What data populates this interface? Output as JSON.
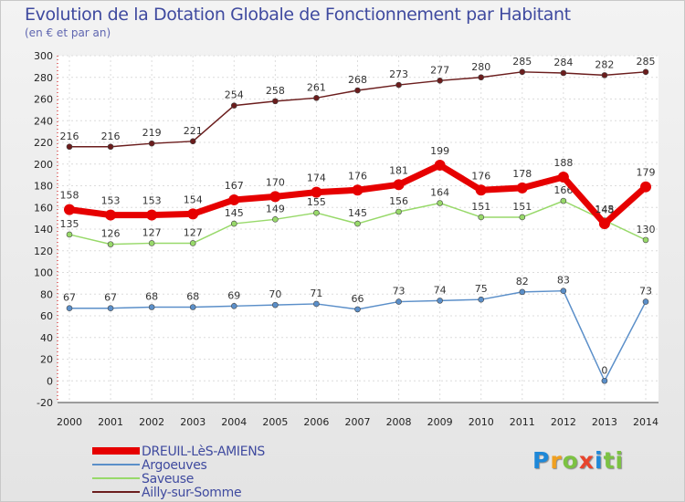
{
  "header": {
    "title": "Evolution de la Dotation Globale de Fonctionnement par Habitant",
    "subtitle": "(en € et par an)"
  },
  "logo": {
    "text": "Proxiti",
    "chars": [
      "P",
      "r",
      "o",
      "x",
      "i",
      "ti"
    ]
  },
  "colors": {
    "DREUIL-LèS-AMIENS": "#e60000",
    "Argoeuves": "#5b8fc9",
    "Saveuse": "#98d96a",
    "Ailly-sur-Somme": "#6b1d1d"
  },
  "chart_data": {
    "type": "line",
    "title": "Evolution de la Dotation Globale de Fonctionnement par Habitant",
    "subtitle": "(en € et par an)",
    "xlabel": "",
    "ylabel": "",
    "x": [
      2000,
      2001,
      2002,
      2003,
      2004,
      2005,
      2006,
      2007,
      2008,
      2009,
      2010,
      2011,
      2012,
      2013,
      2014
    ],
    "ylim": [
      -20,
      300
    ],
    "yticks": [
      -20,
      0,
      20,
      40,
      60,
      80,
      100,
      120,
      140,
      160,
      180,
      200,
      220,
      240,
      260,
      280,
      300
    ],
    "grid": true,
    "legend_position": "bottom-left",
    "series": [
      {
        "name": "Ailly-sur-Somme",
        "values": [
          216,
          216,
          219,
          221,
          254,
          258,
          261,
          268,
          273,
          277,
          280,
          285,
          284,
          282,
          285
        ]
      },
      {
        "name": "Argoeuves",
        "values": [
          67,
          67,
          68,
          68,
          69,
          70,
          71,
          66,
          73,
          74,
          75,
          82,
          83,
          0,
          73
        ]
      },
      {
        "name": "Saveuse",
        "values": [
          135,
          126,
          127,
          127,
          145,
          149,
          155,
          145,
          156,
          164,
          151,
          151,
          166,
          148,
          130
        ]
      },
      {
        "name": "DREUIL-LèS-AMIENS",
        "values": [
          158,
          153,
          153,
          154,
          167,
          170,
          174,
          176,
          181,
          199,
          176,
          178,
          188,
          145,
          179
        ]
      }
    ],
    "legend": [
      "DREUIL-LèS-AMIENS",
      "Argoeuves",
      "Saveuse",
      "Ailly-sur-Somme"
    ]
  }
}
